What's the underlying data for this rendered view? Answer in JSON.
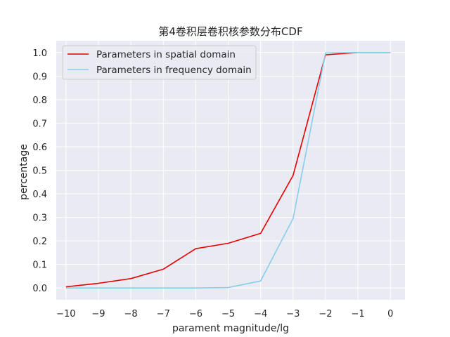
{
  "chart_data": {
    "type": "line",
    "title": "第4卷积层卷积核参数分布CDF",
    "xlabel": "parament magnitude/lg",
    "ylabel": "percentage",
    "x": [
      -10,
      -9,
      -8,
      -7,
      -6,
      -5,
      -4,
      -3,
      -2,
      -1,
      0
    ],
    "xlim": [
      -10.3,
      0.45
    ],
    "ylim": [
      -0.05,
      1.05
    ],
    "xticks": [
      "−10",
      "−9",
      "−8",
      "−7",
      "−6",
      "−5",
      "−4",
      "−3",
      "−2",
      "−1",
      "0"
    ],
    "yticks": [
      "0.0",
      "0.1",
      "0.2",
      "0.3",
      "0.4",
      "0.5",
      "0.6",
      "0.7",
      "0.8",
      "0.9",
      "1.0"
    ],
    "grid": true,
    "legend_position": "top-left",
    "series": [
      {
        "name": "Parameters in spatial domain",
        "color": "#e60000",
        "values": [
          0.005,
          0.02,
          0.04,
          0.08,
          0.167,
          0.19,
          0.232,
          0.478,
          0.99,
          1.0,
          1.0
        ]
      },
      {
        "name": "Parameters in frequency domain",
        "color": "#87ceeb",
        "values": [
          0.0,
          0.0,
          0.0,
          0.0,
          0.0,
          0.002,
          0.03,
          0.295,
          0.998,
          1.0,
          1.0
        ]
      }
    ],
    "background_color": "#eaeaf2",
    "grid_color": "#ffffff"
  }
}
